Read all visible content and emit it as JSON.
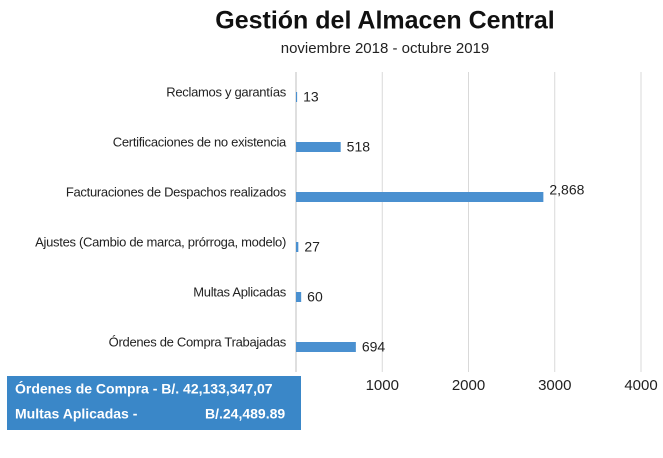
{
  "chart_data": {
    "type": "bar",
    "orientation": "horizontal",
    "title": "Gestión del Almacen Central",
    "subtitle": "noviembre 2018 - octubre 2019",
    "categories": [
      "Reclamos y garantías",
      "Certificaciones de no existencia",
      "Facturaciones de Despachos realizados",
      "Ajustes (Cambio de marca, prórroga, modelo)",
      "Multas Aplicadas",
      "Órdenes de Compra Trabajadas"
    ],
    "values": [
      13,
      518,
      2868,
      27,
      60,
      694
    ],
    "value_labels": [
      "13",
      "518",
      "2,868",
      "27",
      "60",
      "694"
    ],
    "color": "#4a90d0",
    "xlim": [
      0,
      4000
    ],
    "xticks": [
      1000,
      2000,
      3000,
      4000
    ],
    "grid": true,
    "annotations": [
      [
        "Órdenes de Compra - B/. 42,133,347,07"
      ],
      [
        "Multas Aplicadas -",
        "B/.24,489.89"
      ]
    ]
  }
}
